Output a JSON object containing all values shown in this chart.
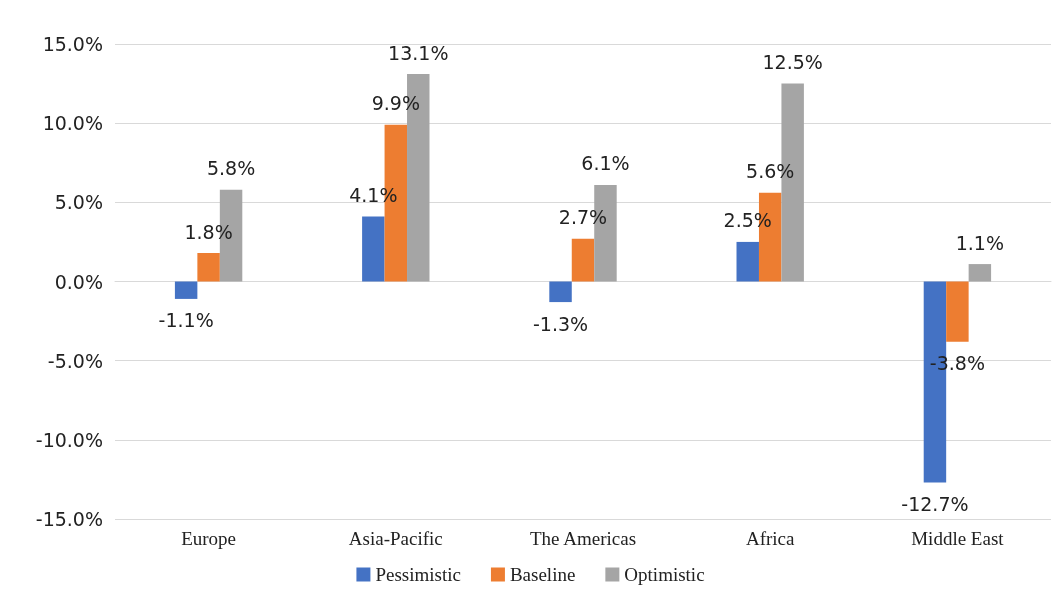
{
  "chart_data": {
    "type": "bar",
    "categories": [
      "Europe",
      "Asia-Pacific",
      "The Americas",
      "Africa",
      "Middle East"
    ],
    "series": [
      {
        "name": "Pessimistic",
        "color": "#4472c4",
        "values": [
          -1.1,
          4.1,
          -1.3,
          2.5,
          -12.7
        ],
        "value_labels": [
          "-1.1%",
          "4.1%",
          "-1.3%",
          "2.5%",
          "-12.7%"
        ]
      },
      {
        "name": "Baseline",
        "color": "#ed7d31",
        "values": [
          1.8,
          9.9,
          2.7,
          5.6,
          -3.8
        ],
        "value_labels": [
          "1.8%",
          "9.9%",
          "2.7%",
          "5.6%",
          "-3.8%"
        ]
      },
      {
        "name": "Optimistic",
        "color": "#a5a5a5",
        "values": [
          5.8,
          13.1,
          6.1,
          12.5,
          1.1
        ],
        "value_labels": [
          "5.8%",
          "13.1%",
          "6.1%",
          "12.5%",
          "1.1%"
        ]
      }
    ],
    "ylim": [
      -15,
      15
    ],
    "yticks": [
      {
        "value": -15,
        "label": "-15.0%"
      },
      {
        "value": -10,
        "label": "-10.0%"
      },
      {
        "value": -5,
        "label": "-5.0%"
      },
      {
        "value": 0,
        "label": "0.0%"
      },
      {
        "value": 5,
        "label": "5.0%"
      },
      {
        "value": 10,
        "label": "10.0%"
      },
      {
        "value": 15,
        "label": "15.0%"
      }
    ],
    "grid": "y",
    "legend": "bottom"
  }
}
